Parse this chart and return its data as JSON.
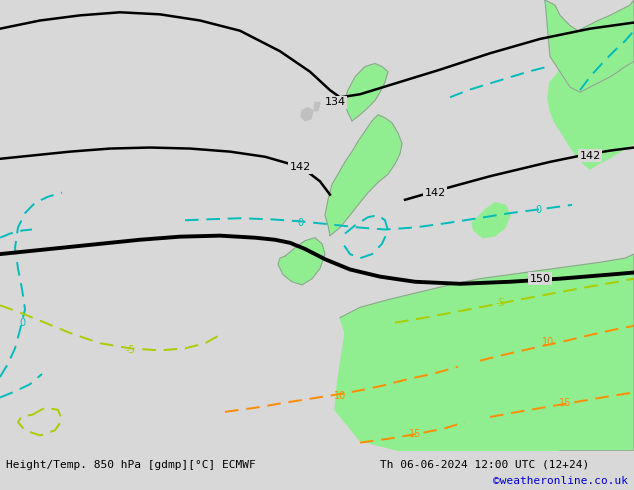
{
  "title_left": "Height/Temp. 850 hPa [gdmp][°C] ECMWF",
  "title_right": "Th 06-06-2024 12:00 UTC (12+24)",
  "credit": "©weatheronline.co.uk",
  "credit_color": "#0000cc",
  "bg_color": "#d8d8d8",
  "land_green": "#90ee90",
  "coast_color": "#888888",
  "fig_width": 6.34,
  "fig_height": 4.9,
  "dpi": 100,
  "label_fontsize": 8,
  "credit_fontsize": 8
}
